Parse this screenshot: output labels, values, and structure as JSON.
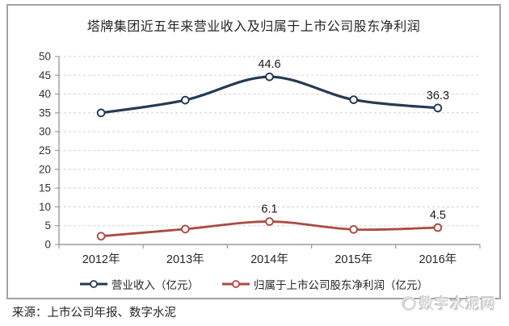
{
  "chart_data": {
    "type": "line",
    "title": "塔牌集团近五年来营业收入及归属于上市公司股东净利润",
    "categories": [
      "2012年",
      "2013年",
      "2014年",
      "2015年",
      "2016年"
    ],
    "series": [
      {
        "name": "营业收入（亿元）",
        "values": [
          35.0,
          38.4,
          44.6,
          38.5,
          36.3
        ],
        "point_labels": [
          "",
          "",
          "44.6",
          "",
          "36.3"
        ],
        "color": "#253a52"
      },
      {
        "name": "归属于上市公司股东净利润（亿元）",
        "values": [
          2.2,
          4.1,
          6.1,
          4.0,
          4.5
        ],
        "point_labels": [
          "",
          "",
          "6.1",
          "",
          "4.5"
        ],
        "color": "#ad4a42"
      }
    ],
    "ylim": [
      0,
      50
    ],
    "ytick_step": 5,
    "grid": "horizontal-dashed",
    "legend_position": "bottom",
    "marker": "open-circle"
  },
  "footer": {
    "source": "来源：上市公司年报、数字水泥"
  },
  "watermark": {
    "text": "数字水泥网"
  },
  "colors": {
    "grid": "#d9d9d9",
    "axis": "#9b9b9b",
    "tick_text": "#333333",
    "label_text": "#1a1a1a",
    "frame": "#a2a2a2"
  }
}
